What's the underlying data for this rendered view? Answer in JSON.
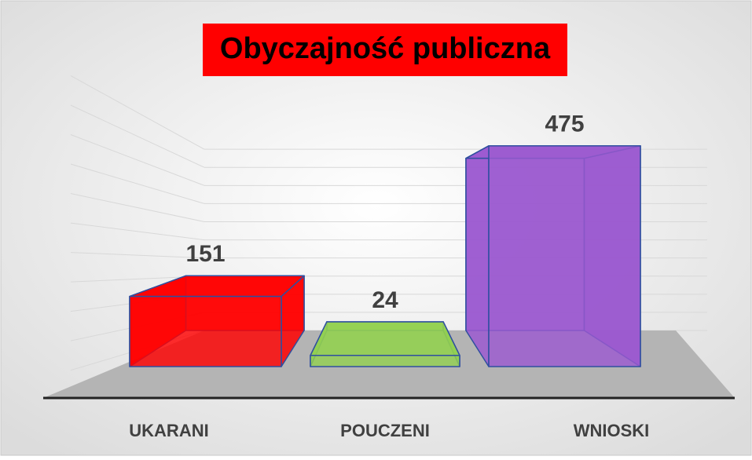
{
  "chart_data": {
    "type": "bar3d",
    "title": "Obyczajność publiczna",
    "categories": [
      "UKARANI",
      "POUCZENI",
      "WNIOSKI"
    ],
    "values": [
      151,
      24,
      475
    ],
    "colors": [
      "#ff0000",
      "#92d050",
      "#9b59d0"
    ],
    "ylim": [
      0,
      500
    ],
    "yticks": [
      0,
      50,
      100,
      150,
      200,
      250,
      300,
      350,
      400,
      450,
      500
    ],
    "grid": true
  }
}
